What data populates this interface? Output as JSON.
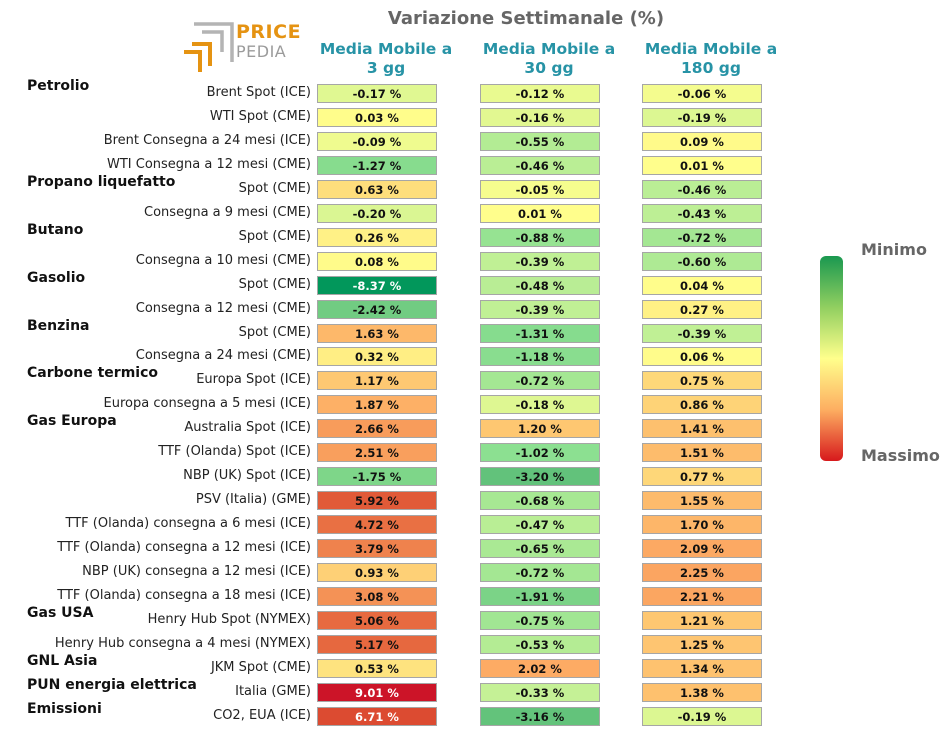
{
  "title": "Variazione Settimanale (%)",
  "logo": {
    "word1": "PRICE",
    "word2": "PEDIA"
  },
  "legend": {
    "min_label": "Minimo",
    "max_label": "Massimo",
    "orientation": "vertical",
    "placement": "right"
  },
  "colors": {
    "title": "#666666",
    "header": "#2793a6",
    "logo_orange": "#e59312",
    "logo_gray": "#9b9b9b"
  },
  "chart_data": {
    "type": "table",
    "title": "Variazione Settimanale (%)",
    "unit": "%",
    "columns": [
      {
        "key": "mm3",
        "label_line1": "Media Mobile a",
        "label_line2": "3 gg"
      },
      {
        "key": "mm30",
        "label_line1": "Media Mobile a",
        "label_line2": "30 gg"
      },
      {
        "key": "mm180",
        "label_line1": "Media Mobile a",
        "label_line2": "180 gg"
      }
    ],
    "groups": [
      {
        "name": "Petrolio",
        "start_row": 0
      },
      {
        "name": "Propano liquefatto",
        "start_row": 4
      },
      {
        "name": "Butano",
        "start_row": 6
      },
      {
        "name": "Gasolio",
        "start_row": 8
      },
      {
        "name": "Benzina",
        "start_row": 10
      },
      {
        "name": "Carbone termico",
        "start_row": 12
      },
      {
        "name": "Gas Europa",
        "start_row": 14
      },
      {
        "name": "Gas USA",
        "start_row": 22
      },
      {
        "name": "GNL Asia",
        "start_row": 24
      },
      {
        "name": "PUN energia elettrica",
        "start_row": 25
      },
      {
        "name": "Emissioni",
        "start_row": 26
      }
    ],
    "rows": [
      {
        "label": "Brent Spot (ICE)",
        "values": [
          -0.17,
          -0.12,
          -0.06
        ]
      },
      {
        "label": "WTI Spot (CME)",
        "values": [
          0.03,
          -0.16,
          -0.19
        ]
      },
      {
        "label": "Brent Consegna a 24 mesi (ICE)",
        "values": [
          -0.09,
          -0.55,
          0.09
        ]
      },
      {
        "label": "WTI Consegna a 12 mesi (CME)",
        "values": [
          -1.27,
          -0.46,
          0.01
        ]
      },
      {
        "label": "Spot (CME)",
        "values": [
          0.63,
          -0.05,
          -0.46
        ]
      },
      {
        "label": "Consegna a 9 mesi (CME)",
        "values": [
          -0.2,
          0.01,
          -0.43
        ]
      },
      {
        "label": "Spot (CME)",
        "values": [
          0.26,
          -0.88,
          -0.72
        ]
      },
      {
        "label": "Consegna a 10 mesi (CME)",
        "values": [
          0.08,
          -0.39,
          -0.6
        ]
      },
      {
        "label": "Spot (CME)",
        "values": [
          -8.37,
          -0.48,
          0.04
        ]
      },
      {
        "label": "Consegna a 12 mesi (CME)",
        "values": [
          -2.42,
          -0.39,
          0.27
        ]
      },
      {
        "label": "Spot (CME)",
        "values": [
          1.63,
          -1.31,
          -0.39
        ]
      },
      {
        "label": "Consegna a 24 mesi (CME)",
        "values": [
          0.32,
          -1.18,
          0.06
        ]
      },
      {
        "label": "Europa Spot (ICE)",
        "values": [
          1.17,
          -0.72,
          0.75
        ]
      },
      {
        "label": "Europa consegna a 5 mesi (ICE)",
        "values": [
          1.87,
          -0.18,
          0.86
        ]
      },
      {
        "label": "Australia Spot (ICE)",
        "values": [
          2.66,
          1.2,
          1.41
        ]
      },
      {
        "label": "TTF (Olanda) Spot (ICE)",
        "values": [
          2.51,
          -1.02,
          1.51
        ]
      },
      {
        "label": "NBP (UK) Spot (ICE)",
        "values": [
          -1.75,
          -3.2,
          0.77
        ]
      },
      {
        "label": "PSV (Italia) (GME)",
        "values": [
          5.92,
          -0.68,
          1.55
        ]
      },
      {
        "label": "TTF (Olanda) consegna a 6 mesi (ICE)",
        "values": [
          4.72,
          -0.47,
          1.7
        ]
      },
      {
        "label": "TTF (Olanda) consegna a 12 mesi (ICE)",
        "values": [
          3.79,
          -0.65,
          2.09
        ]
      },
      {
        "label": "NBP (UK) consegna a 12 mesi (ICE)",
        "values": [
          0.93,
          -0.72,
          2.25
        ]
      },
      {
        "label": "TTF (Olanda) consegna a 18 mesi (ICE)",
        "values": [
          3.08,
          -1.91,
          2.21
        ]
      },
      {
        "label": "Henry Hub Spot (NYMEX)",
        "values": [
          5.06,
          -0.75,
          1.21
        ]
      },
      {
        "label": "Henry Hub consegna a 4 mesi (NYMEX)",
        "values": [
          5.17,
          -0.53,
          1.25
        ]
      },
      {
        "label": "JKM Spot (CME)",
        "values": [
          0.53,
          2.02,
          1.34
        ]
      },
      {
        "label": "Italia (GME)",
        "values": [
          9.01,
          -0.33,
          1.38
        ]
      },
      {
        "label": "CO2, EUA (ICE)",
        "values": [
          6.71,
          -3.16,
          -0.19
        ]
      }
    ]
  }
}
